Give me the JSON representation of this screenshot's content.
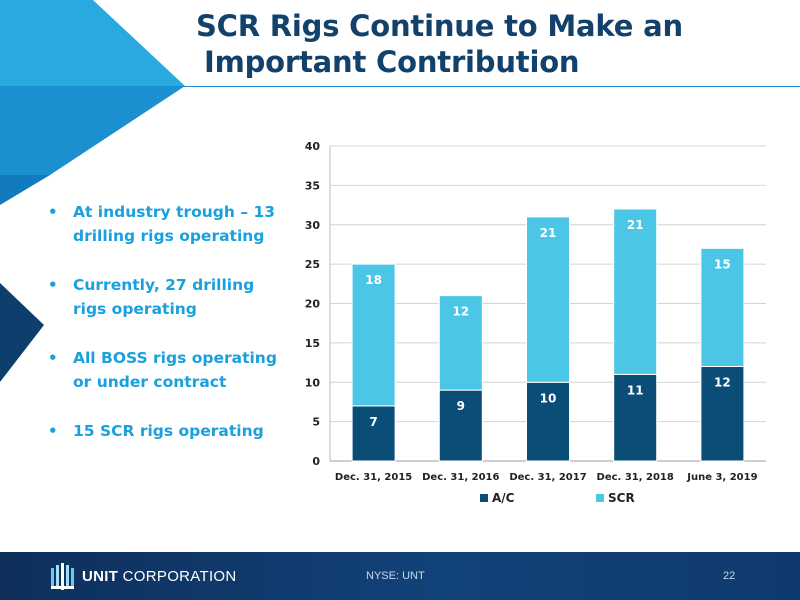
{
  "slide": {
    "title_line1": "SCR Rigs Continue to Make an",
    "title_line2": "Important Contribution",
    "bullets": [
      "At industry trough – 13 drilling rigs operating",
      "Currently, 27 drilling rigs operating",
      "All BOSS rigs operating or under contract",
      "15 SCR rigs operating"
    ]
  },
  "footer": {
    "brand_bold": "UNIT",
    "brand_rest": "CORPORATION",
    "ticker": "NYSE: UNT",
    "page_number": "22"
  },
  "colors": {
    "title": "#12416b",
    "bullet_text": "#1aa0de",
    "series_ac": "#0a4e78",
    "series_scr": "#4cc6e6",
    "footer_bg": "#12427a"
  },
  "chart_data": {
    "type": "bar",
    "stacked": true,
    "categories": [
      "Dec. 31, 2015",
      "Dec. 31, 2016",
      "Dec. 31, 2017",
      "Dec. 31, 2018",
      "June 3, 2019"
    ],
    "series": [
      {
        "name": "A/C",
        "values": [
          7,
          9,
          10,
          11,
          12
        ],
        "color": "#0a4e78"
      },
      {
        "name": "SCR",
        "values": [
          18,
          12,
          21,
          21,
          15
        ],
        "color": "#4cc6e6"
      }
    ],
    "ylim": [
      0,
      40
    ],
    "yticks": [
      0,
      5,
      10,
      15,
      20,
      25,
      30,
      35,
      40
    ],
    "grid": true,
    "legend": "bottom",
    "title": "",
    "xlabel": "",
    "ylabel": ""
  }
}
